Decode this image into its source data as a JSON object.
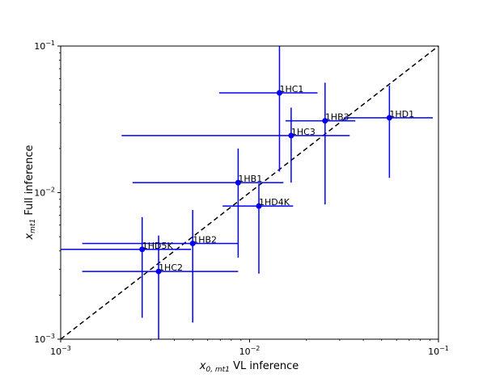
{
  "chart_data": {
    "type": "scatter",
    "title": "",
    "xlabel": {
      "main": "x",
      "sub": "0, mt1",
      "rest": " VL inference"
    },
    "ylabel": {
      "main": "x",
      "sub": "mt1",
      "rest": "  Full inference"
    },
    "xscale": "log",
    "yscale": "log",
    "xlim": [
      0.001,
      0.1
    ],
    "ylim": [
      0.001,
      0.1
    ],
    "grid": false,
    "xticks": [
      {
        "value": 0.001,
        "base": "10",
        "exp": "−3"
      },
      {
        "value": 0.01,
        "base": "10",
        "exp": "−2"
      },
      {
        "value": 0.1,
        "base": "10",
        "exp": "−1"
      }
    ],
    "yticks": [
      {
        "value": 0.001,
        "base": "10",
        "exp": "−3"
      },
      {
        "value": 0.01,
        "base": "10",
        "exp": "−2"
      },
      {
        "value": 0.1,
        "base": "10",
        "exp": "−1"
      }
    ],
    "reference_line": {
      "style": "dashed",
      "color": "#000000",
      "from": [
        0.001,
        0.001
      ],
      "to": [
        0.1,
        0.1
      ]
    },
    "series_color": "#0000ff",
    "points": [
      {
        "label": "1HC1",
        "x": 0.0144,
        "y": 0.0479,
        "xerr": [
          0.0069,
          0.0229
        ],
        "yerr": [
          0.0139,
          0.162
        ]
      },
      {
        "label": "1HB3",
        "x": 0.0251,
        "y": 0.0309,
        "xerr": [
          0.0155,
          0.0363
        ],
        "yerr": [
          0.0083,
          0.0562
        ]
      },
      {
        "label": "1HD1",
        "x": 0.055,
        "y": 0.0324,
        "xerr": [
          0.0316,
          0.0933
        ],
        "yerr": [
          0.0126,
          0.0537
        ]
      },
      {
        "label": "1HC3",
        "x": 0.0166,
        "y": 0.0245,
        "xerr": [
          0.0021,
          0.0339
        ],
        "yerr": [
          0.0117,
          0.038
        ]
      },
      {
        "label": "1HB1",
        "x": 0.0087,
        "y": 0.0117,
        "xerr": [
          0.0024,
          0.0151
        ],
        "yerr": [
          0.0036,
          0.02
        ]
      },
      {
        "label": "1HD4K",
        "x": 0.0112,
        "y": 0.0081,
        "xerr": [
          0.0072,
          0.017
        ],
        "yerr": [
          0.0028,
          0.0115
        ]
      },
      {
        "label": "1HB2",
        "x": 0.005,
        "y": 0.0045,
        "xerr": [
          0.0013,
          0.0087
        ],
        "yerr": [
          0.0013,
          0.0076
        ]
      },
      {
        "label": "1HD5K",
        "x": 0.0027,
        "y": 0.0041,
        "xerr": [
          0.001,
          0.0049
        ],
        "yerr": [
          0.0014,
          0.0068
        ]
      },
      {
        "label": "1HC2",
        "x": 0.0033,
        "y": 0.0029,
        "xerr": [
          0.0013,
          0.0087
        ],
        "yerr": [
          0.0008,
          0.0051
        ]
      }
    ]
  }
}
